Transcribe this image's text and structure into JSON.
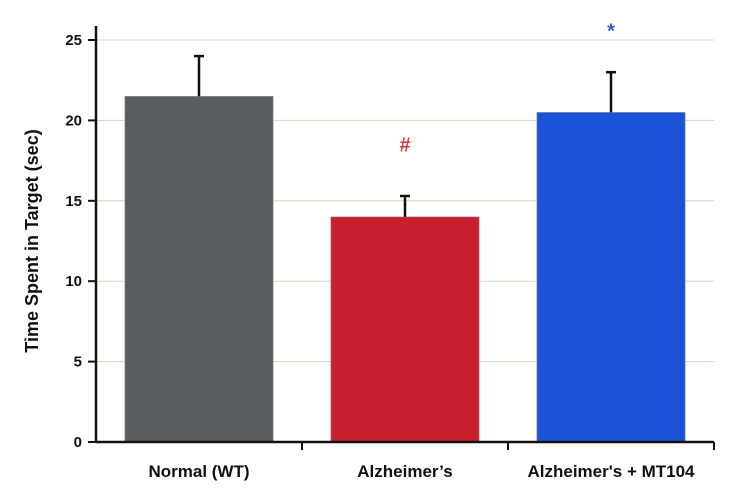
{
  "chart_data": {
    "type": "bar",
    "title": "",
    "xlabel": "",
    "ylabel": "Time Spent in Target (sec)",
    "ylim": [
      0,
      25
    ],
    "yticks": [
      0,
      5,
      10,
      15,
      20,
      25
    ],
    "grid": true,
    "categories": [
      "Normal (WT)",
      "Alzheimer’s",
      "Alzheimer's + MT104"
    ],
    "values": [
      21.5,
      14.0,
      20.5
    ],
    "error_upper": [
      24.0,
      15.3,
      23.0
    ],
    "bar_colors": [
      "#5a5d60",
      "#c91f2e",
      "#1c52d8"
    ],
    "annotations": [
      {
        "category_index": 1,
        "text": "#",
        "y": 18.5,
        "color": "#d63a3a"
      },
      {
        "category_index": 2,
        "text": "*",
        "y": 25.6,
        "color": "#2b5fcc"
      }
    ]
  }
}
